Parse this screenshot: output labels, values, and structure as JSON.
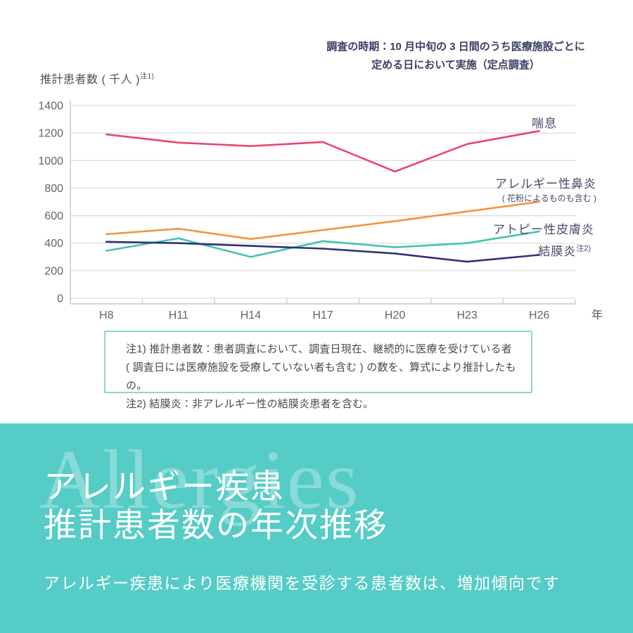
{
  "annotation": {
    "line1": "調査の時期：10 月中旬の 3 日間のうち医療施設ごとに",
    "line2": "定める日において実施（定点調査）"
  },
  "axis": {
    "y_title": "推計患者数 ( 千人 )",
    "y_title_sup": "注1)",
    "x_suffix": "年"
  },
  "chart_data": {
    "type": "line",
    "categories": [
      "H8",
      "H11",
      "H14",
      "H17",
      "H20",
      "H23",
      "H26"
    ],
    "series": [
      {
        "name": "喘息",
        "key": "asthma",
        "color": "#e8486b",
        "values": [
          1190,
          1130,
          1105,
          1135,
          920,
          1120,
          1215
        ]
      },
      {
        "name": "アレルギー性鼻炎",
        "key": "rhinitis",
        "color": "#f2953f",
        "values": [
          465,
          505,
          430,
          495,
          560,
          630,
          700
        ]
      },
      {
        "name": "アトピー性皮膚炎",
        "key": "dermatitis",
        "color": "#43c3b3",
        "values": [
          345,
          435,
          300,
          415,
          370,
          400,
          485
        ]
      },
      {
        "name": "結膜炎",
        "key": "conjunctivitis",
        "color": "#2c3473",
        "values": [
          410,
          400,
          380,
          360,
          325,
          265,
          315
        ]
      }
    ],
    "title": "アレルギー疾患 推計患者数の年次推移",
    "xlabel": "年",
    "ylabel": "推計患者数 ( 千人 )",
    "ylim": [
      0,
      1400
    ],
    "ytick_step": 200,
    "grid": true,
    "legend_position": "right-of-line-ends"
  },
  "legend": {
    "items": [
      {
        "label": "喘息"
      },
      {
        "label": "アレルギー性鼻炎",
        "sublabel": "( 花粉によるものも含む )"
      },
      {
        "label": "アトピー性皮膚炎"
      },
      {
        "label": "結膜炎",
        "note_sup": "注2)"
      }
    ]
  },
  "notes": {
    "line1": "注1) 推計患者数：患者調査において、調査日現在、継続的に医療を受けている者",
    "line2": "( 調査日には医療施設を受療していない者も含む ) の数を、算式により推計したもの。",
    "line3": "注2) 結膜炎：非アレルギー性の結膜炎患者を含む。"
  },
  "banner": {
    "watermark": "Allergies",
    "title_line1": "アレルギー疾患",
    "title_line2": "推計患者数の年次推移",
    "subtitle": "アレルギー疾患により医療機関を受診する患者数は、増加傾向です"
  },
  "colors": {
    "banner_bg": "#55ccc5",
    "annotation_text": "#3a3e66",
    "legend_text": "#474b6b",
    "grid_line": "#dcdcdc",
    "axis_line": "#c9c9c9",
    "tick_text": "#63636a",
    "notes_border": "#8bd7d0"
  }
}
